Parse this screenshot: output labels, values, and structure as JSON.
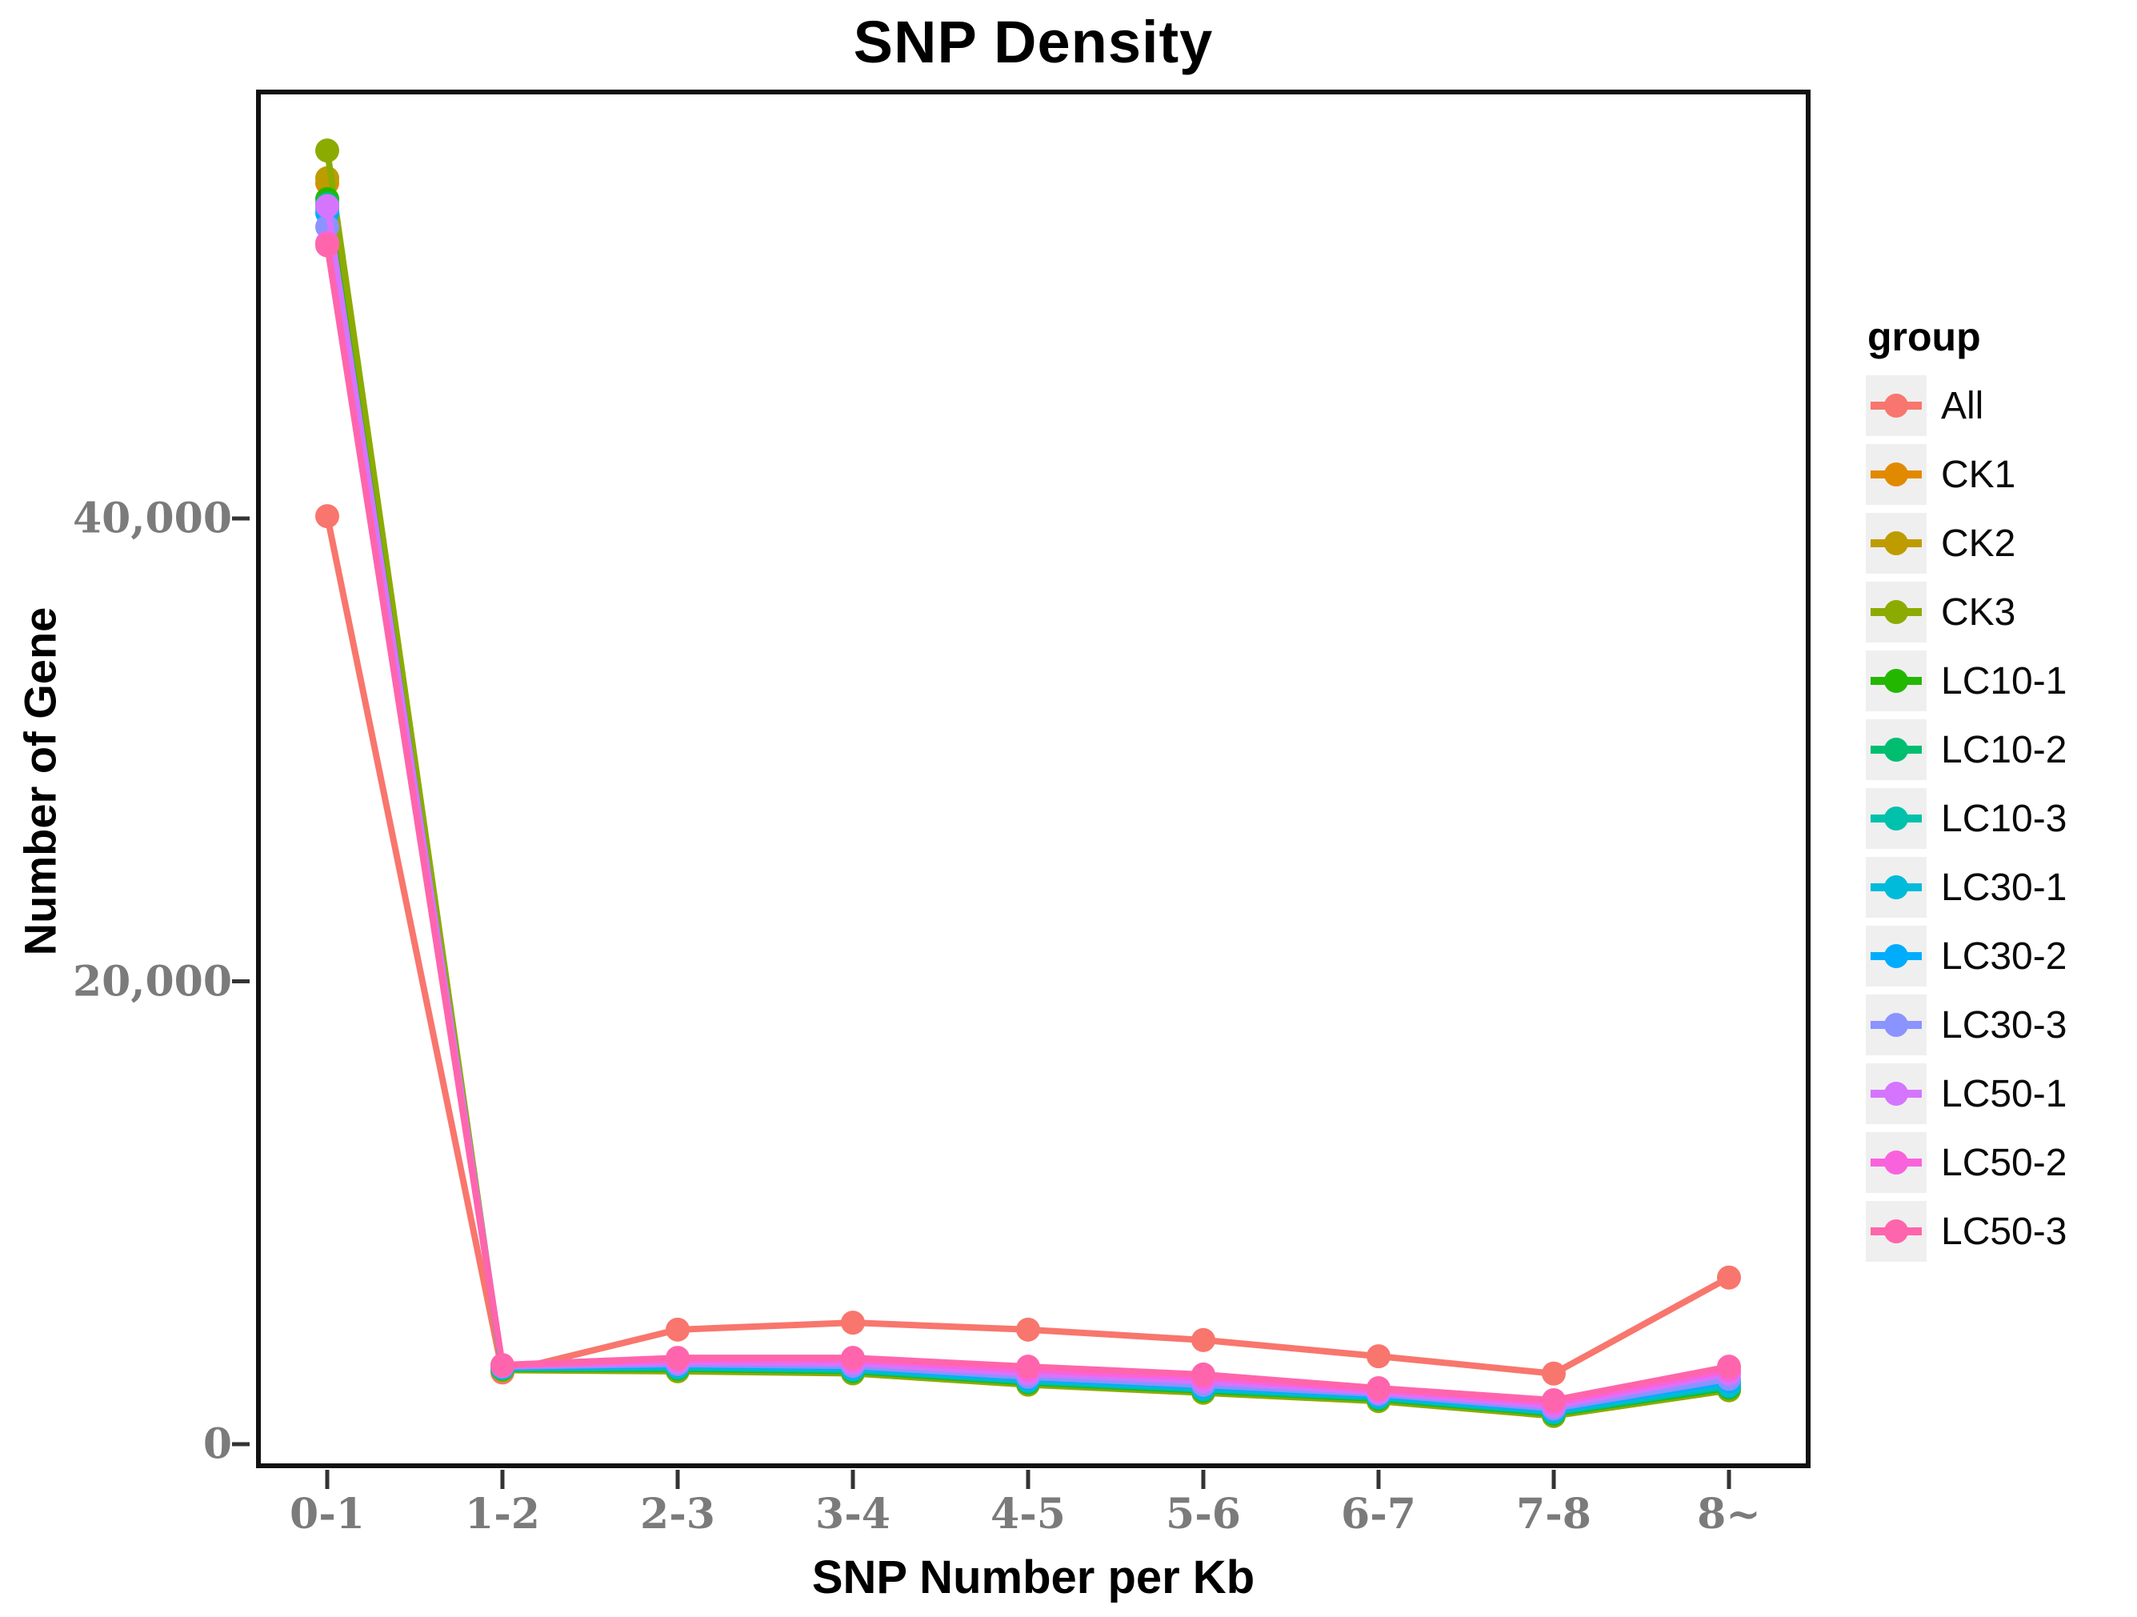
{
  "title": "SNP Density",
  "legend": {
    "title": "group"
  },
  "chart_data": {
    "type": "line",
    "title": "SNP Density",
    "xlabel": "SNP Number per Kb",
    "ylabel": "Number of Gene",
    "categories": [
      "0-1",
      "1-2",
      "2-3",
      "3-4",
      "4-5",
      "5-6",
      "6-7",
      "7-8",
      "8~"
    ],
    "y_ticks": [
      {
        "value": 0,
        "label": "0"
      },
      {
        "value": 20000,
        "label": "20,000"
      },
      {
        "value": 40000,
        "label": "40,000"
      }
    ],
    "ylim": [
      0,
      58500
    ],
    "grid": false,
    "legend_position": "right",
    "legend_title": "group",
    "marker": "circle",
    "series": [
      {
        "name": "All",
        "color": "#F8766D",
        "values": [
          40100,
          3100,
          4950,
          5250,
          4950,
          4500,
          3800,
          3050,
          7200
        ]
      },
      {
        "name": "CK1",
        "color": "#E18A00",
        "values": [
          54500,
          3240,
          3230,
          3130,
          2640,
          2290,
          1930,
          1290,
          2400
        ]
      },
      {
        "name": "CK2",
        "color": "#BE9C00",
        "values": [
          54700,
          3220,
          3200,
          3100,
          2610,
          2260,
          1900,
          1260,
          2370
        ]
      },
      {
        "name": "CK3",
        "color": "#8CAB00",
        "values": [
          55900,
          3200,
          3150,
          3060,
          2570,
          2220,
          1860,
          1220,
          2330
        ]
      },
      {
        "name": "LC10-1",
        "color": "#24B700",
        "values": [
          53800,
          3260,
          3260,
          3160,
          2670,
          2320,
          1960,
          1320,
          2440
        ]
      },
      {
        "name": "LC10-2",
        "color": "#00BE70",
        "values": [
          53600,
          3280,
          3290,
          3190,
          2700,
          2350,
          1990,
          1350,
          2480
        ]
      },
      {
        "name": "LC10-3",
        "color": "#00C1AB",
        "values": [
          53500,
          3300,
          3320,
          3220,
          2730,
          2380,
          2020,
          1380,
          2520
        ]
      },
      {
        "name": "LC30-1",
        "color": "#00BBDA",
        "values": [
          53400,
          3320,
          3380,
          3280,
          2790,
          2440,
          2080,
          1440,
          2620
        ]
      },
      {
        "name": "LC30-2",
        "color": "#00ACFC",
        "values": [
          53200,
          3340,
          3420,
          3330,
          2850,
          2500,
          2120,
          1490,
          2720
        ]
      },
      {
        "name": "LC30-3",
        "color": "#8B93FF",
        "values": [
          52600,
          3360,
          3460,
          3380,
          2910,
          2560,
          2170,
          1540,
          2820
        ]
      },
      {
        "name": "LC50-1",
        "color": "#D575FE",
        "values": [
          53500,
          3380,
          3550,
          3500,
          3050,
          2720,
          2250,
          1650,
          3050
        ]
      },
      {
        "name": "LC50-2",
        "color": "#F962DD",
        "values": [
          51900,
          3400,
          3650,
          3640,
          3200,
          2870,
          2340,
          1780,
          3200
        ]
      },
      {
        "name": "LC50-3",
        "color": "#FF65AC",
        "values": [
          51800,
          3420,
          3730,
          3730,
          3350,
          3010,
          2420,
          1900,
          3350
        ]
      }
    ]
  }
}
